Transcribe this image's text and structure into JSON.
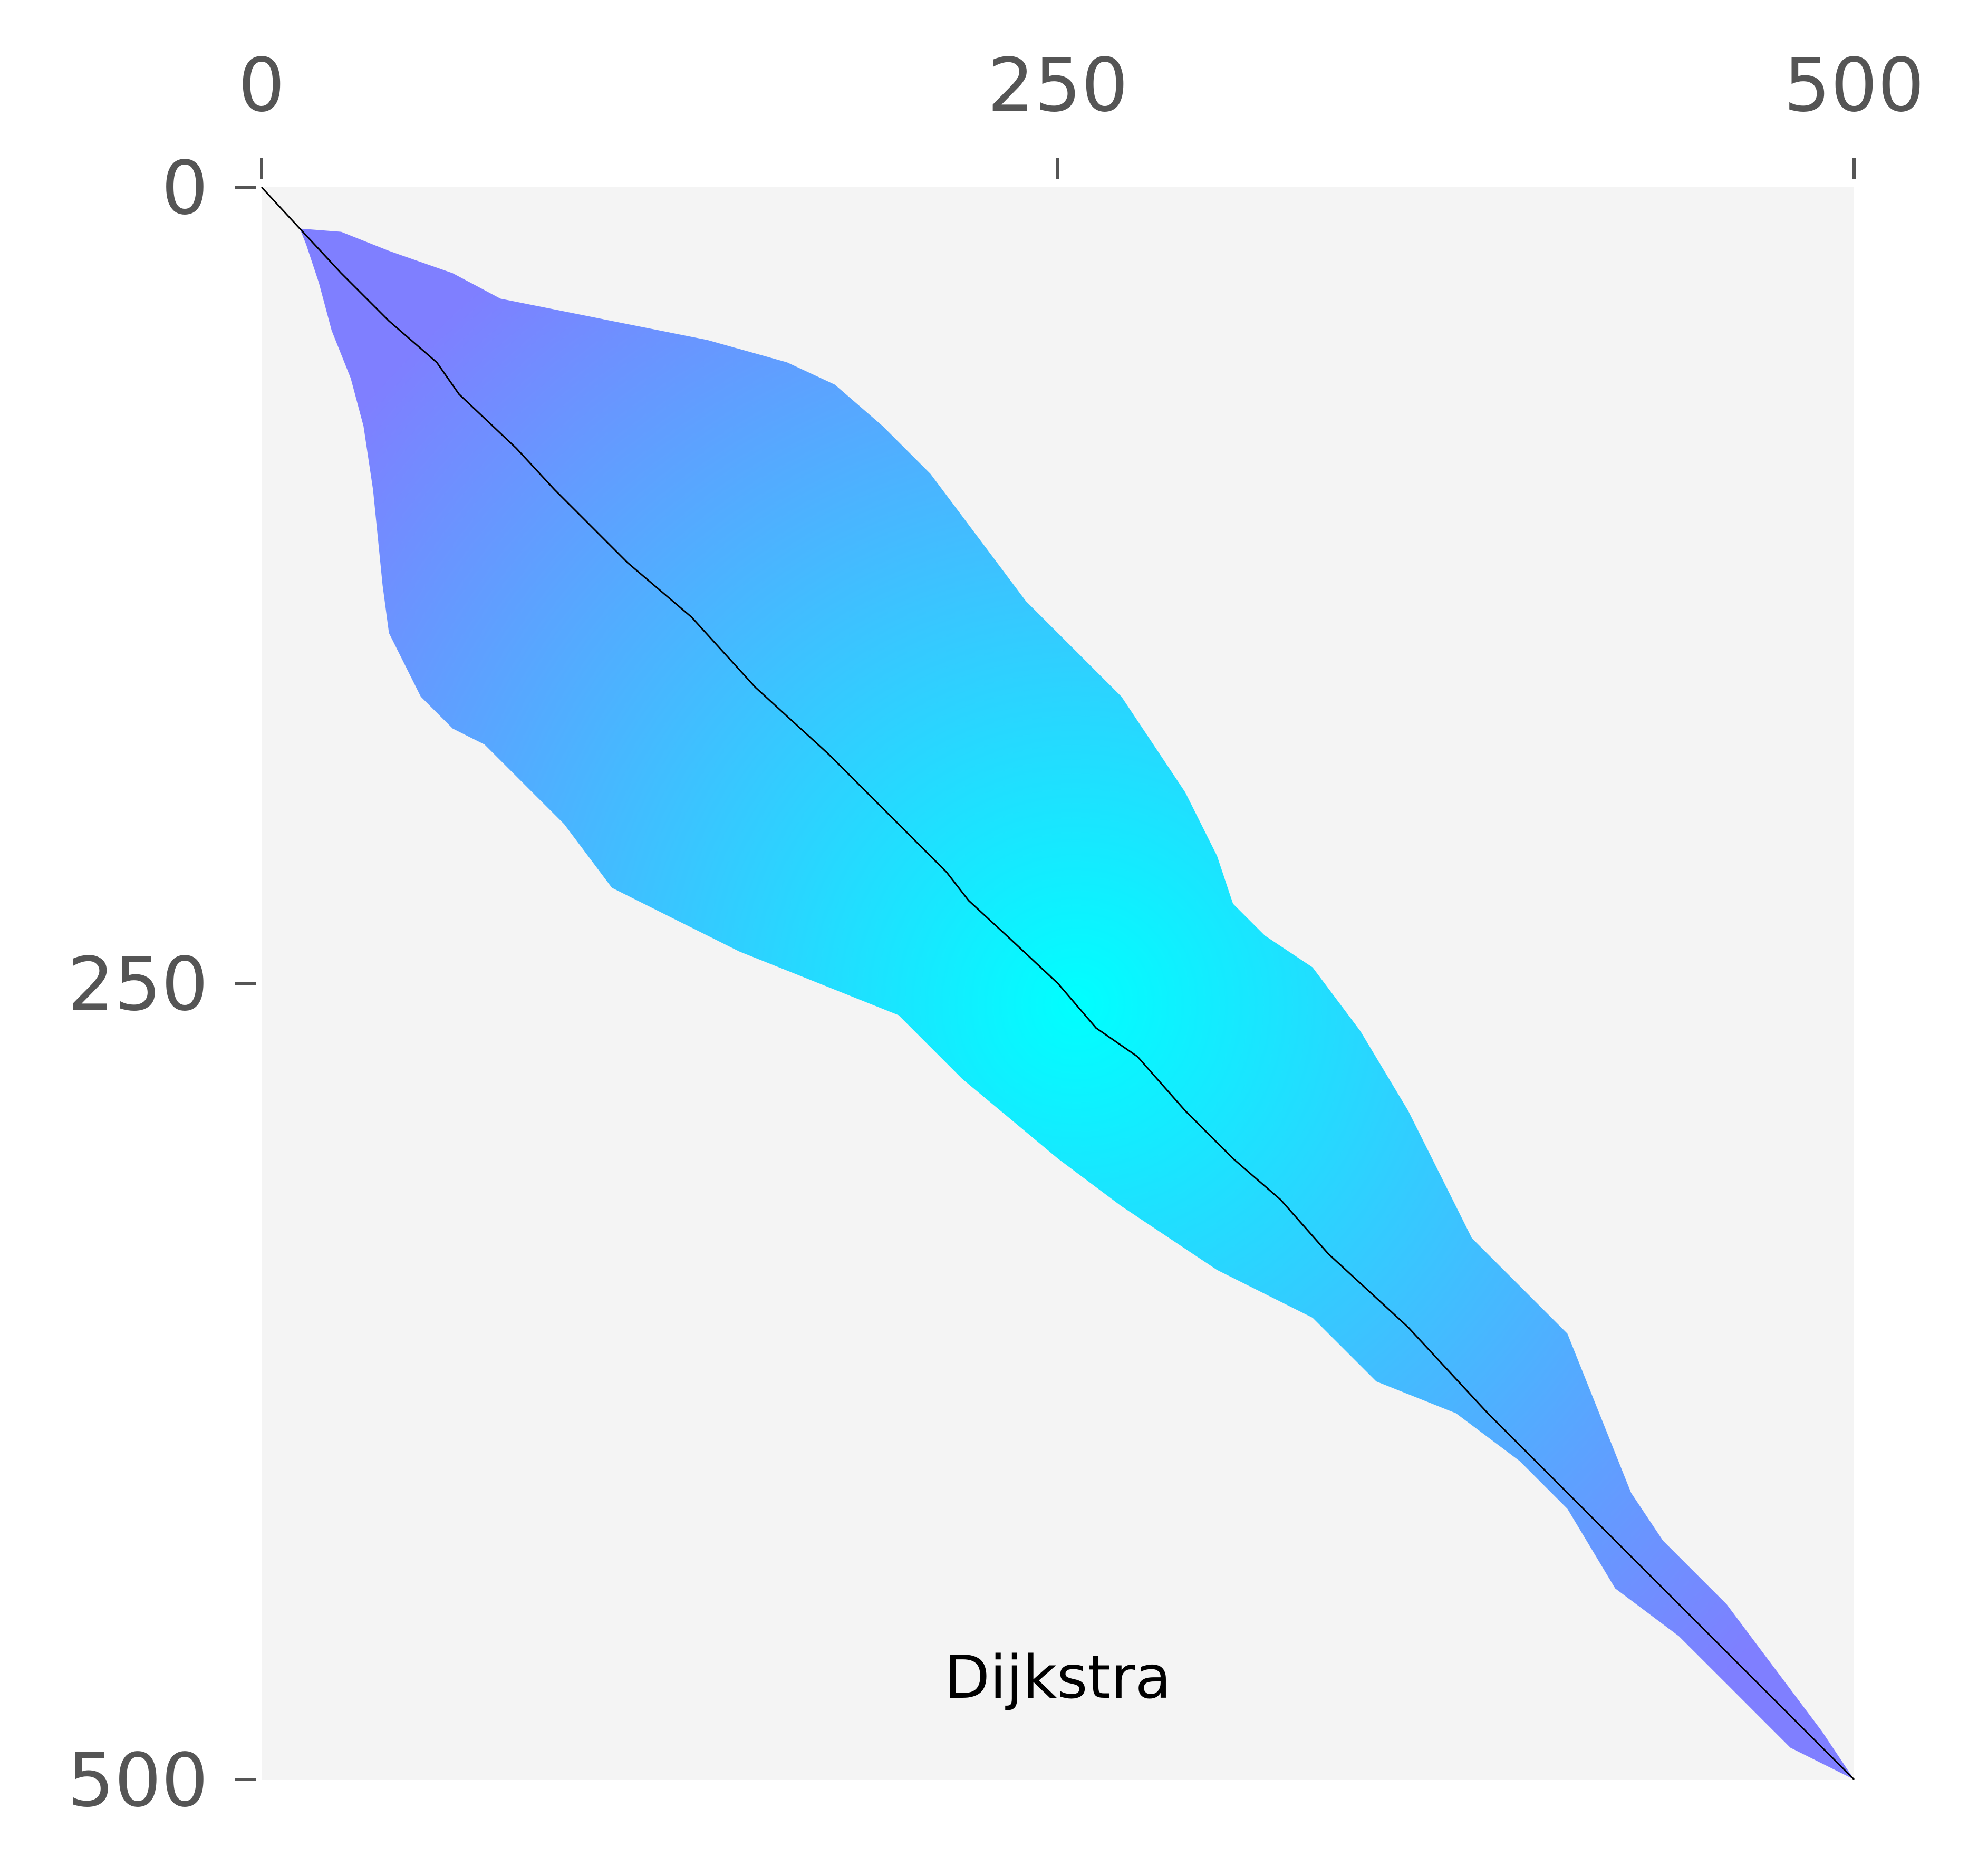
{
  "chart_data": {
    "type": "heatmap",
    "annotation": "Dijkstra",
    "x_ticks": [
      0,
      250,
      500
    ],
    "y_ticks": [
      0,
      250,
      500
    ],
    "xlim": [
      0,
      500
    ],
    "ylim": [
      0,
      500
    ],
    "x_axis_position": "top",
    "y_axis_inverted": true,
    "grid": false,
    "colors": {
      "background": "#f4f4f4",
      "explored_near": "#00ffff",
      "explored_far": "#7f7fff",
      "path": "#000000",
      "tick_text": "#555555",
      "annotation_text": "#000000"
    },
    "explored_region": {
      "description_units": "grid cells (x = column, y = row)",
      "upper_boundary": [
        [
          12,
          13
        ],
        [
          25,
          14
        ],
        [
          40,
          20
        ],
        [
          60,
          27
        ],
        [
          75,
          35
        ],
        [
          90,
          38
        ],
        [
          110,
          42
        ],
        [
          140,
          48
        ],
        [
          165,
          55
        ],
        [
          180,
          62
        ],
        [
          195,
          75
        ],
        [
          210,
          90
        ],
        [
          225,
          110
        ],
        [
          240,
          130
        ],
        [
          255,
          145
        ],
        [
          270,
          160
        ],
        [
          280,
          175
        ],
        [
          290,
          190
        ],
        [
          300,
          210
        ],
        [
          305,
          225
        ],
        [
          315,
          235
        ],
        [
          330,
          245
        ],
        [
          345,
          265
        ],
        [
          360,
          290
        ],
        [
          370,
          310
        ],
        [
          380,
          330
        ],
        [
          395,
          345
        ],
        [
          410,
          360
        ],
        [
          420,
          385
        ],
        [
          430,
          410
        ],
        [
          440,
          425
        ],
        [
          460,
          445
        ],
        [
          475,
          465
        ],
        [
          490,
          485
        ],
        [
          500,
          500
        ]
      ],
      "lower_boundary": [
        [
          500,
          500
        ],
        [
          480,
          490
        ],
        [
          470,
          480
        ],
        [
          460,
          470
        ],
        [
          445,
          455
        ],
        [
          425,
          440
        ],
        [
          410,
          415
        ],
        [
          395,
          400
        ],
        [
          375,
          385
        ],
        [
          350,
          375
        ],
        [
          330,
          355
        ],
        [
          300,
          340
        ],
        [
          270,
          320
        ],
        [
          250,
          305
        ],
        [
          220,
          280
        ],
        [
          200,
          260
        ],
        [
          175,
          250
        ],
        [
          150,
          240
        ],
        [
          130,
          230
        ],
        [
          110,
          220
        ],
        [
          95,
          200
        ],
        [
          80,
          185
        ],
        [
          70,
          175
        ],
        [
          60,
          170
        ],
        [
          50,
          160
        ],
        [
          45,
          150
        ],
        [
          40,
          140
        ],
        [
          38,
          125
        ],
        [
          37,
          115
        ],
        [
          35,
          95
        ],
        [
          32,
          75
        ],
        [
          28,
          60
        ],
        [
          22,
          45
        ],
        [
          18,
          30
        ],
        [
          14,
          18
        ],
        [
          12,
          13
        ]
      ]
    },
    "path": {
      "from": [
        0,
        0
      ],
      "to": [
        500,
        500
      ],
      "points": [
        [
          0,
          0
        ],
        [
          12,
          13
        ],
        [
          25,
          27
        ],
        [
          40,
          42
        ],
        [
          55,
          55
        ],
        [
          62,
          65
        ],
        [
          80,
          82
        ],
        [
          92,
          95
        ],
        [
          100,
          103
        ],
        [
          115,
          118
        ],
        [
          135,
          135
        ],
        [
          155,
          157
        ],
        [
          178,
          178
        ],
        [
          200,
          200
        ],
        [
          215,
          215
        ],
        [
          222,
          224
        ],
        [
          235,
          236
        ],
        [
          250,
          250
        ],
        [
          262,
          264
        ],
        [
          275,
          273
        ],
        [
          290,
          290
        ],
        [
          305,
          305
        ],
        [
          320,
          318
        ],
        [
          335,
          335
        ],
        [
          360,
          358
        ],
        [
          385,
          385
        ],
        [
          410,
          410
        ],
        [
          435,
          435
        ],
        [
          460,
          460
        ],
        [
          480,
          480
        ],
        [
          500,
          500
        ]
      ]
    }
  }
}
